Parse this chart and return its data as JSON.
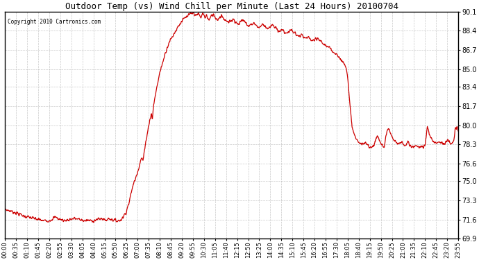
{
  "title": "Outdoor Temp (vs) Wind Chill per Minute (Last 24 Hours) 20100704",
  "copyright": "Copyright 2010 Cartronics.com",
  "line_color": "#cc0000",
  "background_color": "#ffffff",
  "plot_bg_color": "#ffffff",
  "grid_color": "#bbbbbb",
  "y_min": 69.9,
  "y_max": 90.1,
  "y_ticks": [
    69.9,
    71.6,
    73.3,
    75.0,
    76.6,
    78.3,
    80.0,
    81.7,
    83.4,
    85.0,
    86.7,
    88.4,
    90.1
  ],
  "x_tick_labels": [
    "00:00",
    "00:35",
    "01:10",
    "01:45",
    "02:20",
    "02:55",
    "03:30",
    "04:05",
    "04:40",
    "05:15",
    "05:50",
    "06:25",
    "07:00",
    "07:35",
    "08:10",
    "08:45",
    "09:20",
    "09:55",
    "10:30",
    "11:05",
    "11:40",
    "12:15",
    "12:50",
    "13:25",
    "14:00",
    "14:35",
    "15:10",
    "15:45",
    "16:20",
    "16:55",
    "17:30",
    "18:05",
    "18:40",
    "19:15",
    "19:50",
    "20:25",
    "21:00",
    "21:35",
    "22:10",
    "22:45",
    "23:20",
    "23:55"
  ],
  "keypoints": [
    [
      0,
      72.5
    ],
    [
      35,
      72.2
    ],
    [
      60,
      71.9
    ],
    [
      90,
      71.7
    ],
    [
      105,
      71.6
    ],
    [
      120,
      71.5
    ],
    [
      140,
      71.5
    ],
    [
      160,
      71.8
    ],
    [
      175,
      71.6
    ],
    [
      190,
      71.5
    ],
    [
      205,
      71.6
    ],
    [
      220,
      71.7
    ],
    [
      235,
      71.6
    ],
    [
      250,
      71.5
    ],
    [
      265,
      71.5
    ],
    [
      280,
      71.5
    ],
    [
      295,
      71.6
    ],
    [
      310,
      71.7
    ],
    [
      315,
      71.6
    ],
    [
      320,
      71.5
    ],
    [
      325,
      71.6
    ],
    [
      330,
      71.7
    ],
    [
      340,
      71.6
    ],
    [
      350,
      71.5
    ],
    [
      360,
      71.5
    ],
    [
      365,
      71.5
    ],
    [
      375,
      71.8
    ],
    [
      385,
      72.3
    ],
    [
      395,
      73.2
    ],
    [
      405,
      74.5
    ],
    [
      415,
      75.3
    ],
    [
      420,
      75.8
    ],
    [
      425,
      76.2
    ],
    [
      430,
      76.8
    ],
    [
      435,
      77.1
    ],
    [
      438,
      76.8
    ],
    [
      442,
      77.5
    ],
    [
      450,
      79.0
    ],
    [
      460,
      80.5
    ],
    [
      465,
      81.0
    ],
    [
      468,
      80.5
    ],
    [
      472,
      81.8
    ],
    [
      480,
      83.0
    ],
    [
      490,
      84.5
    ],
    [
      500,
      85.5
    ],
    [
      510,
      86.5
    ],
    [
      520,
      87.3
    ],
    [
      530,
      87.8
    ],
    [
      540,
      88.3
    ],
    [
      550,
      88.8
    ],
    [
      560,
      89.2
    ],
    [
      570,
      89.5
    ],
    [
      580,
      89.7
    ],
    [
      590,
      89.9
    ],
    [
      600,
      90.0
    ],
    [
      610,
      89.7
    ],
    [
      615,
      90.0
    ],
    [
      622,
      89.5
    ],
    [
      628,
      90.0
    ],
    [
      635,
      89.6
    ],
    [
      640,
      89.8
    ],
    [
      648,
      89.3
    ],
    [
      655,
      89.7
    ],
    [
      662,
      89.9
    ],
    [
      668,
      89.6
    ],
    [
      675,
      89.4
    ],
    [
      682,
      89.6
    ],
    [
      688,
      89.8
    ],
    [
      695,
      89.5
    ],
    [
      702,
      89.3
    ],
    [
      710,
      89.1
    ],
    [
      718,
      89.3
    ],
    [
      725,
      89.5
    ],
    [
      732,
      89.2
    ],
    [
      740,
      89.0
    ],
    [
      748,
      89.2
    ],
    [
      755,
      89.4
    ],
    [
      762,
      89.2
    ],
    [
      768,
      89.0
    ],
    [
      775,
      88.8
    ],
    [
      782,
      89.0
    ],
    [
      790,
      89.1
    ],
    [
      798,
      88.9
    ],
    [
      805,
      88.7
    ],
    [
      812,
      88.8
    ],
    [
      820,
      89.0
    ],
    [
      828,
      88.8
    ],
    [
      835,
      88.6
    ],
    [
      842,
      88.7
    ],
    [
      850,
      88.9
    ],
    [
      858,
      88.7
    ],
    [
      865,
      88.5
    ],
    [
      872,
      88.4
    ],
    [
      880,
      88.5
    ],
    [
      888,
      88.3
    ],
    [
      895,
      88.2
    ],
    [
      902,
      88.3
    ],
    [
      908,
      88.5
    ],
    [
      915,
      88.3
    ],
    [
      920,
      88.2
    ],
    [
      928,
      88.0
    ],
    [
      935,
      87.9
    ],
    [
      942,
      88.0
    ],
    [
      950,
      87.8
    ],
    [
      958,
      87.7
    ],
    [
      965,
      87.8
    ],
    [
      972,
      87.6
    ],
    [
      980,
      87.5
    ],
    [
      988,
      87.6
    ],
    [
      995,
      87.7
    ],
    [
      1002,
      87.5
    ],
    [
      1010,
      87.3
    ],
    [
      1018,
      87.1
    ],
    [
      1025,
      87.0
    ],
    [
      1032,
      86.8
    ],
    [
      1040,
      86.6
    ],
    [
      1048,
      86.5
    ],
    [
      1055,
      86.3
    ],
    [
      1060,
      86.1
    ],
    [
      1065,
      85.9
    ],
    [
      1070,
      85.7
    ],
    [
      1075,
      85.6
    ],
    [
      1080,
      85.5
    ],
    [
      1083,
      85.3
    ],
    [
      1085,
      85.0
    ],
    [
      1086,
      84.8
    ],
    [
      1088,
      84.5
    ],
    [
      1090,
      83.8
    ],
    [
      1092,
      83.0
    ],
    [
      1095,
      82.0
    ],
    [
      1098,
      81.2
    ],
    [
      1100,
      80.5
    ],
    [
      1103,
      80.0
    ],
    [
      1106,
      79.5
    ],
    [
      1110,
      79.1
    ],
    [
      1115,
      78.8
    ],
    [
      1120,
      78.6
    ],
    [
      1125,
      78.5
    ],
    [
      1130,
      78.3
    ],
    [
      1135,
      78.3
    ],
    [
      1140,
      78.3
    ],
    [
      1145,
      78.4
    ],
    [
      1150,
      78.3
    ],
    [
      1155,
      78.2
    ],
    [
      1160,
      78.1
    ],
    [
      1165,
      78.0
    ],
    [
      1170,
      78.2
    ],
    [
      1175,
      78.5
    ],
    [
      1180,
      78.8
    ],
    [
      1185,
      79.0
    ],
    [
      1188,
      78.8
    ],
    [
      1192,
      78.5
    ],
    [
      1196,
      78.3
    ],
    [
      1200,
      78.2
    ],
    [
      1205,
      78.0
    ],
    [
      1210,
      79.0
    ],
    [
      1215,
      79.5
    ],
    [
      1218,
      79.8
    ],
    [
      1222,
      79.5
    ],
    [
      1225,
      79.3
    ],
    [
      1228,
      79.0
    ],
    [
      1232,
      78.8
    ],
    [
      1235,
      78.6
    ],
    [
      1240,
      78.5
    ],
    [
      1245,
      78.4
    ],
    [
      1250,
      78.3
    ],
    [
      1255,
      78.4
    ],
    [
      1260,
      78.5
    ],
    [
      1265,
      78.3
    ],
    [
      1270,
      78.2
    ],
    [
      1275,
      78.3
    ],
    [
      1280,
      78.5
    ],
    [
      1285,
      78.3
    ],
    [
      1290,
      78.2
    ],
    [
      1295,
      78.0
    ],
    [
      1300,
      78.1
    ],
    [
      1305,
      78.2
    ],
    [
      1310,
      78.1
    ],
    [
      1315,
      78.0
    ],
    [
      1320,
      78.1
    ],
    [
      1325,
      78.2
    ],
    [
      1330,
      78.0
    ],
    [
      1335,
      78.2
    ],
    [
      1340,
      79.5
    ],
    [
      1342,
      79.8
    ],
    [
      1345,
      79.5
    ],
    [
      1348,
      79.2
    ],
    [
      1352,
      79.0
    ],
    [
      1355,
      78.8
    ],
    [
      1360,
      78.6
    ],
    [
      1365,
      78.5
    ],
    [
      1370,
      78.4
    ],
    [
      1375,
      78.5
    ],
    [
      1380,
      78.6
    ],
    [
      1385,
      78.5
    ],
    [
      1390,
      78.4
    ],
    [
      1395,
      78.3
    ],
    [
      1400,
      78.5
    ],
    [
      1405,
      78.6
    ],
    [
      1410,
      78.5
    ],
    [
      1415,
      78.4
    ],
    [
      1420,
      78.3
    ],
    [
      1425,
      78.5
    ],
    [
      1430,
      79.5
    ],
    [
      1435,
      79.8
    ],
    [
      1440,
      79.6
    ]
  ]
}
